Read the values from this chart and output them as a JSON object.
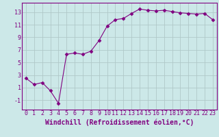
{
  "x": [
    0,
    1,
    2,
    3,
    4,
    5,
    6,
    7,
    8,
    9,
    10,
    11,
    12,
    13,
    14,
    15,
    16,
    17,
    18,
    19,
    20,
    21,
    22,
    23
  ],
  "y": [
    2.5,
    1.5,
    1.8,
    0.5,
    -1.5,
    6.3,
    6.5,
    6.3,
    6.8,
    8.5,
    10.8,
    11.8,
    12.0,
    12.8,
    13.5,
    13.3,
    13.2,
    13.3,
    13.1,
    12.9,
    12.8,
    12.7,
    12.8,
    11.8
  ],
  "xlabel": "Windchill (Refroidissement éolien,°C)",
  "xlim": [
    -0.5,
    23.5
  ],
  "ylim": [
    -2.5,
    14.5
  ],
  "yticks": [
    -1,
    1,
    3,
    5,
    7,
    9,
    11,
    13
  ],
  "xticks": [
    0,
    1,
    2,
    3,
    4,
    5,
    6,
    7,
    8,
    9,
    10,
    11,
    12,
    13,
    14,
    15,
    16,
    17,
    18,
    19,
    20,
    21,
    22,
    23
  ],
  "line_color": "#800080",
  "marker": "D",
  "marker_size": 2.5,
  "bg_color": "#cce8e8",
  "grid_color": "#b0c8c8",
  "tick_label_fontsize": 6,
  "xlabel_fontsize": 7
}
